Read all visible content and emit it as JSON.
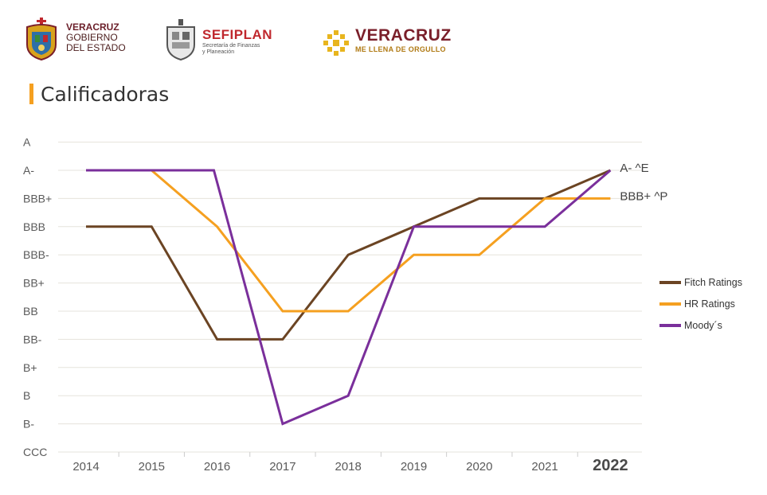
{
  "header": {
    "gov_line1": "VERACRUZ",
    "gov_line2": "GOBIERNO",
    "gov_line3": "DEL ESTADO",
    "sefiplan_name": "SEFIPLAN",
    "sefiplan_sub1": "Secretaría de Finanzas",
    "sefiplan_sub2": "y Planeación",
    "brand_name": "VERACRUZ",
    "brand_slogan": "ME LLENA DE ORGULLO"
  },
  "page": {
    "title": "Calificadoras"
  },
  "colors": {
    "fitch": "#6b4423",
    "hr": "#f5a020",
    "moodys": "#7a2f9b",
    "accent": "#f5a020",
    "grid": "#e6e3dc",
    "brand": "#7a1f2a"
  },
  "chart_data": {
    "type": "line",
    "title": "Calificadoras",
    "y_categories": [
      "CCC",
      "B-",
      "B",
      "B+",
      "BB-",
      "BB",
      "BB+",
      "BBB-",
      "BBB",
      "BBB+",
      "A-",
      "A"
    ],
    "categories": [
      "2014",
      "2015",
      "2016",
      "2017",
      "2018",
      "2019",
      "2020",
      "2021",
      "2022"
    ],
    "series": [
      {
        "name": "Fitch Ratings",
        "color": "#6b4423",
        "points": [
          [
            2014,
            "BBB"
          ],
          [
            2015,
            "BBB"
          ],
          [
            2016,
            "BB-"
          ],
          [
            2017,
            "BB-"
          ],
          [
            2018,
            "BBB-"
          ],
          [
            2019,
            "BBB"
          ],
          [
            2020,
            "BBB+"
          ],
          [
            2021,
            "BBB+"
          ],
          [
            2022,
            "A-"
          ]
        ]
      },
      {
        "name": "HR Ratings",
        "color": "#f5a020",
        "points": [
          [
            2015,
            "A-"
          ],
          [
            2016,
            "BBB"
          ],
          [
            2017,
            "BB"
          ],
          [
            2018,
            "BB"
          ],
          [
            2019,
            "BBB-"
          ],
          [
            2020,
            "BBB-"
          ],
          [
            2021,
            "BBB+"
          ],
          [
            2022,
            "BBB+"
          ]
        ]
      },
      {
        "name": "Moody´s",
        "color": "#7a2f9b",
        "points": [
          [
            2014,
            "A-"
          ],
          [
            2015.95,
            "A-"
          ],
          [
            2017,
            "B-"
          ],
          [
            2018,
            "B"
          ],
          [
            2019,
            "BBB"
          ],
          [
            2021,
            "BBB"
          ],
          [
            2022,
            "A-"
          ]
        ]
      }
    ],
    "annotations": [
      {
        "text": "A- ^E",
        "year": 2022,
        "level": "A-"
      },
      {
        "text": "BBB+ ^P",
        "year": 2022,
        "level": "BBB+"
      }
    ],
    "legend_position": "right",
    "highlighted_category": "2022",
    "grid": true
  }
}
